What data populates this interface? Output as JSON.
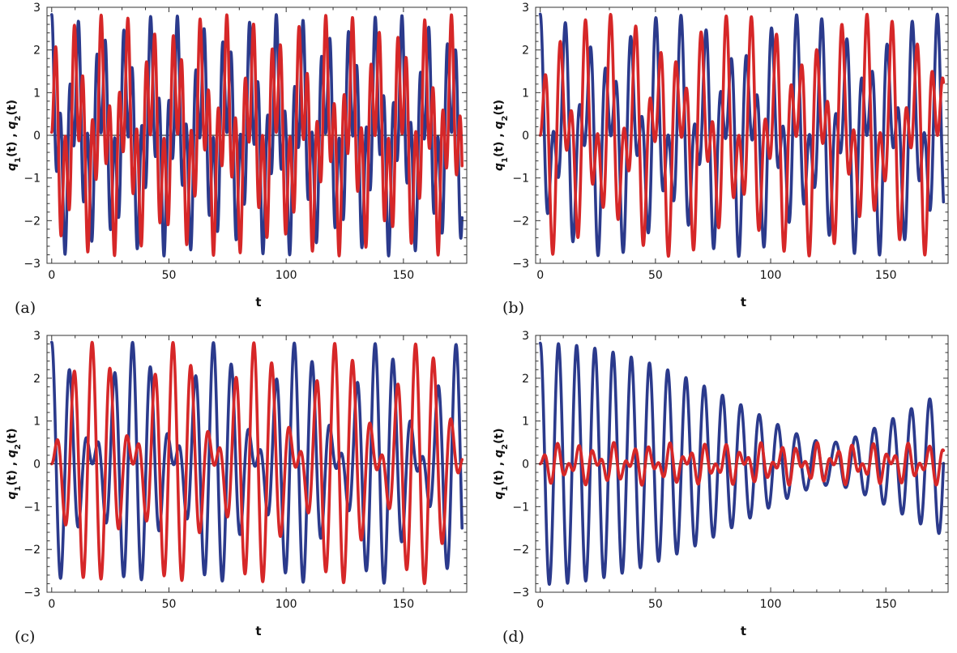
{
  "colors": {
    "q1": "#2b3a8c",
    "q2": "#d62728"
  },
  "chart_data": [
    {
      "type": "line",
      "panel": "(a)",
      "xlabel": "t",
      "ylabel": "q1(t) , q2(t)",
      "xlim": [
        -2,
        177
      ],
      "ylim": [
        -3,
        3
      ],
      "xticks": [
        0,
        50,
        100,
        150
      ],
      "yticks": [
        -3,
        -2,
        -1,
        0,
        1,
        2,
        3
      ],
      "x_range": [
        0,
        175
      ],
      "series": [
        {
          "name": "q1(t)",
          "color": "#2b3a8c",
          "modes": [
            {
              "amp": 1.45,
              "omega": 0.59,
              "phase": 0
            },
            {
              "amp": 1.38,
              "omega": 1.64,
              "phase": 0
            }
          ]
        },
        {
          "name": "q2(t)",
          "color": "#d62728",
          "modes": [
            {
              "amp": 1.45,
              "omega": 0.59,
              "phase": 0
            },
            {
              "amp": -1.38,
              "omega": 1.64,
              "phase": 0
            }
          ]
        }
      ]
    },
    {
      "type": "line",
      "panel": "(b)",
      "xlabel": "t",
      "ylabel": "q1(t) , q2(t)",
      "xlim": [
        -2,
        177
      ],
      "ylim": [
        -3,
        3
      ],
      "xticks": [
        0,
        50,
        100,
        150
      ],
      "yticks": [
        -3,
        -2,
        -1,
        0,
        1,
        2,
        3
      ],
      "x_range": [
        0,
        175
      ],
      "series": [
        {
          "name": "q1(t)",
          "color": "#2b3a8c",
          "modes": [
            {
              "amp": 1.42,
              "omega": 0.62,
              "phase": 0
            },
            {
              "amp": 1.42,
              "omega": 1.13,
              "phase": 0
            }
          ]
        },
        {
          "name": "q2(t)",
          "color": "#d62728",
          "modes": [
            {
              "amp": 1.42,
              "omega": 0.62,
              "phase": 0
            },
            {
              "amp": -1.42,
              "omega": 1.13,
              "phase": 0
            }
          ]
        }
      ]
    },
    {
      "type": "line",
      "panel": "(c)",
      "xlabel": "t",
      "ylabel": "q1(t) , q2(t)",
      "xlim": [
        -2,
        177
      ],
      "ylim": [
        -3,
        3
      ],
      "xticks": [
        0,
        50,
        100,
        150
      ],
      "yticks": [
        -3,
        -2,
        -1,
        0,
        1,
        2,
        3
      ],
      "x_range": [
        0,
        175
      ],
      "series": [
        {
          "name": "q1(t)",
          "color": "#2b3a8c",
          "modes": [
            {
              "amp": 1.42,
              "omega": 0.73,
              "phase": 0
            },
            {
              "amp": 1.42,
              "omega": 0.91,
              "phase": 0
            }
          ]
        },
        {
          "name": "q2(t)",
          "color": "#d62728",
          "modes": [
            {
              "amp": 1.42,
              "omega": 0.73,
              "phase": 0
            },
            {
              "amp": -1.42,
              "omega": 0.91,
              "phase": 0
            }
          ]
        }
      ]
    },
    {
      "type": "line",
      "panel": "(d)",
      "xlabel": "t",
      "ylabel": "q1(t) , q2(t)",
      "xlim": [
        -2,
        177
      ],
      "ylim": [
        -3,
        3
      ],
      "xticks": [
        0,
        50,
        100,
        150
      ],
      "yticks": [
        -3,
        -2,
        -1,
        0,
        1,
        2,
        3
      ],
      "x_range": [
        0,
        175
      ],
      "series": [
        {
          "name": "q1(t)",
          "color": "#2b3a8c",
          "modes": [
            {
              "amp": 1.66,
              "omega": 0.785,
              "phase": 0
            },
            {
              "amp": 1.16,
              "omega": 0.81,
              "phase": 0
            }
          ]
        },
        {
          "name": "q2(t)",
          "color": "#d62728",
          "modes": [
            {
              "amp": 0.25,
              "omega": 0.785,
              "phase": 0
            },
            {
              "amp": -0.25,
              "omega": 1.28,
              "phase": 0
            }
          ]
        }
      ]
    }
  ]
}
